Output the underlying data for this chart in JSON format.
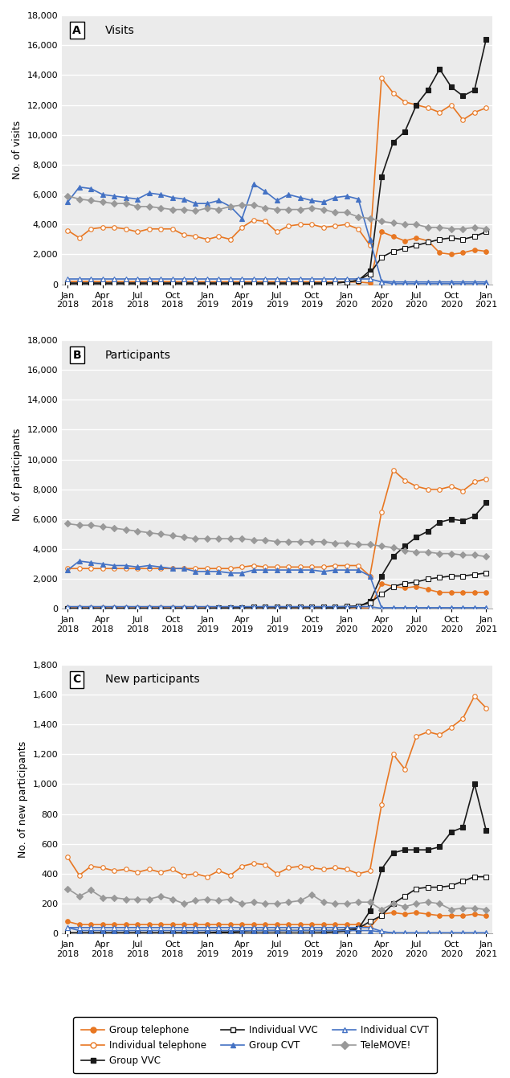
{
  "xtick_indices": [
    0,
    3,
    6,
    9,
    12,
    15,
    18,
    21,
    24,
    27,
    30,
    33,
    36
  ],
  "xtick_labels": [
    "Jan\n2018",
    "Apr\n2018",
    "Jul\n2018",
    "Oct\n2018",
    "Jan\n2019",
    "Apr\n2019",
    "Jul\n2019",
    "Oct\n2019",
    "Jan\n2020",
    "Apr\n2020",
    "Jul\n2020",
    "Oct\n2020",
    "Jan\n2021"
  ],
  "visits_group_tel": [
    180,
    180,
    180,
    170,
    170,
    170,
    170,
    170,
    170,
    170,
    160,
    160,
    160,
    160,
    160,
    160,
    160,
    160,
    160,
    160,
    160,
    160,
    150,
    150,
    150,
    150,
    80,
    3500,
    3200,
    2900,
    3100,
    2900,
    2100,
    2000,
    2100,
    2300,
    2200
  ],
  "visits_ind_tel": [
    3600,
    3100,
    3700,
    3800,
    3800,
    3700,
    3500,
    3700,
    3700,
    3700,
    3300,
    3200,
    3000,
    3200,
    3000,
    3800,
    4300,
    4200,
    3500,
    3900,
    4000,
    4000,
    3800,
    3900,
    4000,
    3700,
    2600,
    13800,
    12800,
    12200,
    12000,
    11800,
    11500,
    12000,
    11000,
    11500,
    11800
  ],
  "visits_group_vvc": [
    30,
    30,
    30,
    30,
    30,
    30,
    30,
    30,
    30,
    30,
    30,
    30,
    30,
    30,
    30,
    30,
    30,
    30,
    30,
    30,
    30,
    30,
    30,
    80,
    150,
    250,
    900,
    7200,
    9500,
    10200,
    12000,
    13000,
    14400,
    13200,
    12600,
    13000,
    16400
  ],
  "visits_ind_vvc": [
    80,
    80,
    80,
    80,
    80,
    80,
    80,
    80,
    80,
    80,
    80,
    80,
    80,
    80,
    80,
    80,
    80,
    80,
    80,
    80,
    80,
    80,
    80,
    80,
    150,
    250,
    700,
    1800,
    2200,
    2400,
    2600,
    2800,
    3000,
    3100,
    3000,
    3200,
    3500
  ],
  "visits_group_cvt": [
    5500,
    6500,
    6400,
    6000,
    5900,
    5800,
    5700,
    6100,
    6000,
    5800,
    5700,
    5400,
    5400,
    5600,
    5200,
    4400,
    6700,
    6200,
    5600,
    6000,
    5800,
    5600,
    5500,
    5800,
    5900,
    5700,
    3000,
    200,
    150,
    150,
    150,
    150,
    150,
    150,
    150,
    150,
    150
  ],
  "visits_ind_cvt": [
    350,
    350,
    350,
    350,
    350,
    350,
    350,
    350,
    350,
    350,
    350,
    350,
    350,
    350,
    350,
    350,
    350,
    350,
    350,
    350,
    350,
    350,
    350,
    350,
    350,
    350,
    350,
    150,
    40,
    40,
    40,
    40,
    40,
    40,
    40,
    40,
    40
  ],
  "visits_telemove": [
    5900,
    5700,
    5600,
    5500,
    5400,
    5400,
    5200,
    5200,
    5100,
    5000,
    5000,
    4900,
    5100,
    5000,
    5200,
    5300,
    5300,
    5100,
    5000,
    5000,
    5000,
    5100,
    5000,
    4800,
    4800,
    4500,
    4400,
    4200,
    4100,
    4000,
    4000,
    3800,
    3800,
    3700,
    3700,
    3800,
    3700
  ],
  "parts_group_tel": [
    80,
    80,
    80,
    80,
    80,
    80,
    80,
    80,
    80,
    80,
    80,
    80,
    80,
    80,
    80,
    80,
    80,
    80,
    80,
    80,
    80,
    80,
    80,
    80,
    80,
    80,
    40,
    1700,
    1500,
    1400,
    1500,
    1300,
    1100,
    1100,
    1100,
    1100,
    1100
  ],
  "parts_ind_tel": [
    2700,
    2700,
    2700,
    2700,
    2700,
    2700,
    2700,
    2700,
    2700,
    2700,
    2700,
    2700,
    2700,
    2700,
    2700,
    2800,
    2900,
    2800,
    2800,
    2800,
    2800,
    2800,
    2800,
    2900,
    2900,
    2900,
    2200,
    6500,
    9300,
    8600,
    8200,
    8000,
    8000,
    8200,
    7900,
    8500,
    8700
  ],
  "parts_group_vvc": [
    10,
    10,
    10,
    10,
    10,
    10,
    10,
    10,
    10,
    10,
    10,
    10,
    10,
    10,
    10,
    10,
    10,
    10,
    10,
    10,
    10,
    10,
    20,
    50,
    80,
    150,
    500,
    2200,
    3500,
    4200,
    4800,
    5200,
    5800,
    6000,
    5900,
    6200,
    7100
  ],
  "parts_ind_vvc": [
    30,
    30,
    30,
    30,
    30,
    30,
    30,
    30,
    30,
    30,
    30,
    30,
    30,
    60,
    60,
    90,
    130,
    130,
    130,
    130,
    130,
    130,
    130,
    130,
    160,
    200,
    400,
    1000,
    1500,
    1700,
    1800,
    2000,
    2100,
    2200,
    2200,
    2300,
    2400
  ],
  "parts_group_cvt": [
    2600,
    3200,
    3100,
    3000,
    2900,
    2900,
    2800,
    2900,
    2800,
    2700,
    2700,
    2500,
    2500,
    2500,
    2400,
    2400,
    2600,
    2600,
    2600,
    2600,
    2600,
    2600,
    2500,
    2600,
    2600,
    2600,
    2200,
    80,
    80,
    80,
    80,
    80,
    80,
    80,
    80,
    80,
    80
  ],
  "parts_ind_cvt": [
    150,
    150,
    150,
    150,
    150,
    150,
    150,
    150,
    150,
    150,
    150,
    150,
    150,
    150,
    150,
    150,
    150,
    150,
    150,
    150,
    150,
    150,
    150,
    150,
    150,
    150,
    150,
    40,
    15,
    15,
    15,
    15,
    15,
    15,
    15,
    15,
    15
  ],
  "parts_telemove": [
    5700,
    5600,
    5600,
    5500,
    5400,
    5300,
    5200,
    5100,
    5000,
    4900,
    4800,
    4700,
    4700,
    4700,
    4700,
    4700,
    4600,
    4600,
    4500,
    4500,
    4500,
    4500,
    4500,
    4400,
    4400,
    4300,
    4300,
    4200,
    4100,
    3900,
    3800,
    3800,
    3700,
    3700,
    3600,
    3600,
    3500
  ],
  "new_group_tel": [
    80,
    60,
    60,
    60,
    60,
    60,
    60,
    60,
    60,
    60,
    60,
    60,
    60,
    60,
    60,
    60,
    60,
    60,
    60,
    60,
    60,
    60,
    60,
    60,
    60,
    60,
    40,
    130,
    140,
    130,
    140,
    130,
    120,
    120,
    120,
    130,
    120
  ],
  "new_ind_tel": [
    510,
    390,
    450,
    440,
    420,
    430,
    410,
    430,
    410,
    430,
    390,
    400,
    380,
    420,
    390,
    450,
    470,
    460,
    400,
    440,
    450,
    440,
    430,
    440,
    430,
    400,
    420,
    860,
    1200,
    1100,
    1320,
    1350,
    1330,
    1380,
    1440,
    1590,
    1510
  ],
  "new_group_vvc": [
    3,
    3,
    3,
    3,
    3,
    3,
    3,
    3,
    3,
    3,
    3,
    3,
    3,
    3,
    3,
    3,
    3,
    3,
    3,
    3,
    3,
    3,
    5,
    10,
    15,
    30,
    150,
    430,
    540,
    560,
    560,
    560,
    580,
    680,
    710,
    1000,
    690
  ],
  "new_ind_vvc": [
    5,
    5,
    5,
    5,
    5,
    5,
    5,
    5,
    5,
    5,
    5,
    5,
    5,
    10,
    10,
    15,
    20,
    20,
    20,
    20,
    20,
    20,
    20,
    20,
    25,
    35,
    80,
    120,
    200,
    250,
    300,
    310,
    310,
    320,
    350,
    380,
    380
  ],
  "new_group_cvt": [
    40,
    20,
    20,
    20,
    20,
    20,
    20,
    20,
    20,
    20,
    20,
    20,
    20,
    20,
    20,
    20,
    20,
    20,
    20,
    20,
    20,
    20,
    20,
    20,
    20,
    20,
    20,
    10,
    5,
    5,
    5,
    5,
    5,
    5,
    5,
    5,
    5
  ],
  "new_ind_cvt": [
    40,
    40,
    40,
    40,
    40,
    40,
    40,
    40,
    40,
    40,
    40,
    40,
    40,
    40,
    40,
    40,
    40,
    40,
    40,
    40,
    40,
    40,
    40,
    40,
    40,
    40,
    40,
    15,
    3,
    3,
    3,
    3,
    3,
    3,
    3,
    3,
    3
  ],
  "new_telemove": [
    300,
    250,
    290,
    240,
    240,
    230,
    230,
    230,
    250,
    230,
    200,
    220,
    230,
    220,
    230,
    200,
    210,
    200,
    200,
    210,
    220,
    260,
    210,
    200,
    200,
    210,
    210,
    160,
    200,
    180,
    200,
    210,
    200,
    160,
    170,
    170,
    160
  ],
  "colors": {
    "group_tel": "#E87722",
    "ind_tel": "#E87722",
    "group_vvc": "#1A1A1A",
    "ind_vvc": "#1A1A1A",
    "group_cvt": "#4472C4",
    "ind_cvt": "#4472C4",
    "telemove": "#999999"
  },
  "ylim_AB": [
    0,
    18000
  ],
  "ylim_C": [
    0,
    1800
  ],
  "yticks_AB": [
    0,
    2000,
    4000,
    6000,
    8000,
    10000,
    12000,
    14000,
    16000,
    18000
  ],
  "yticks_C": [
    0,
    200,
    400,
    600,
    800,
    1000,
    1200,
    1400,
    1600,
    1800
  ],
  "ylabels": [
    "No. of visits",
    "No. of participants",
    "No. of new participants"
  ],
  "bg_color": "#EBEBEB",
  "grid_color": "#FFFFFF",
  "panel_letters": [
    "A",
    "B",
    "C"
  ],
  "panel_titles": [
    "Visits",
    "Participants",
    "New participants"
  ]
}
